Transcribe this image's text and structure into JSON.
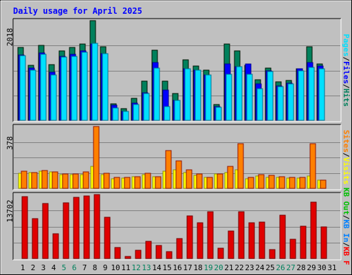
{
  "chart_data": {
    "type": "bar",
    "title": "Daily usage for April 2025",
    "days": [
      "1",
      "2",
      "3",
      "4",
      "5",
      "6",
      "7",
      "8",
      "9",
      "10",
      "11",
      "12",
      "13",
      "14",
      "15",
      "16",
      "17",
      "18",
      "19",
      "20",
      "21",
      "22",
      "23",
      "24",
      "25",
      "26",
      "27",
      "28",
      "29",
      "30",
      "31"
    ],
    "weekend_days": [
      5,
      6,
      12,
      13,
      19,
      20,
      26,
      27
    ],
    "colors": {
      "title": "#0000ff",
      "hits": "#00805c",
      "files": "#0000ff",
      "pages": "#00e0ff",
      "visits": "#ffff00",
      "sites": "#ff8000",
      "kb_out": "#00c000",
      "kb_in": "#0080ff",
      "kb_f": "#ff0000",
      "kbytes": "#e00000",
      "weekday_label": "#000000",
      "weekend_label": "#00805c"
    },
    "panels": [
      {
        "id": "hits-files-pages",
        "max_label": "2018",
        "ymax": 2018,
        "legend": [
          {
            "text": "Hits",
            "color": "#00805c"
          },
          {
            "text": "/",
            "color": "#000000"
          },
          {
            "text": "Files",
            "color": "#0000ff"
          },
          {
            "text": "/",
            "color": "#000000"
          },
          {
            "text": "Pages",
            "color": "#00e0ff"
          }
        ],
        "series": [
          {
            "name": "Hits",
            "color": "#00805c",
            "values": [
              1477,
              1113,
              1520,
              1122,
              1401,
              1480,
              1540,
              2018,
              1496,
              340,
              237,
              440,
              795,
              1425,
              787,
              538,
              1227,
              1106,
              1009,
              323,
              1546,
              1401,
              1116,
              818,
              1064,
              775,
              808,
              1043,
              1494,
              1146,
              0
            ]
          },
          {
            "name": "Files",
            "color": "#0000ff",
            "values": [
              1319,
              1058,
              1367,
              980,
              1291,
              1340,
              1405,
              1540,
              1356,
              301,
              186,
              346,
              563,
              1163,
              612,
              398,
              1048,
              1015,
              920,
              275,
              1144,
              1085,
              1140,
              735,
              1000,
              699,
              753,
              1040,
              1174,
              1101,
              0
            ]
          },
          {
            "name": "Pages",
            "color": "#00e0ff",
            "values": [
              1306,
              1011,
              1336,
              921,
              1281,
              1298,
              1375,
              1561,
              1355,
              250,
              182,
              323,
              542,
              1057,
              277,
              400,
              1046,
              1019,
              925,
              265,
              939,
              1085,
              934,
              634,
              982,
              682,
              743,
              1000,
              1069,
              1041,
              0
            ]
          }
        ]
      },
      {
        "id": "visits-sites",
        "max_label": "378",
        "ymax": 378,
        "legend": [
          {
            "text": "Visits",
            "color": "#ffff00"
          },
          {
            "text": "/",
            "color": "#000000"
          },
          {
            "text": "Sites",
            "color": "#ff8000"
          }
        ],
        "series": [
          {
            "name": "Visits",
            "color": "#ffff00",
            "values": [
              92,
              97,
              107,
              100,
              84,
              84,
              86,
              133,
              84,
              60,
              63,
              72,
              84,
              72,
              106,
              113,
              95,
              79,
              69,
              90,
              97,
              113,
              58,
              75,
              67,
              66,
              62,
              65,
              75,
              49,
              0
            ]
          },
          {
            "name": "Sites",
            "color": "#ff8000",
            "values": [
              105,
              98,
              110,
              102,
              88,
              88,
              100,
              378,
              92,
              68,
              68,
              73,
              92,
              73,
              230,
              168,
              113,
              88,
              69,
              90,
              135,
              275,
              68,
              85,
              78,
              70,
              68,
              68,
              275,
              49,
              0
            ]
          }
        ]
      },
      {
        "id": "kbytes",
        "max_label": "13702",
        "ymax": 13702,
        "legend": [
          {
            "text": "KB F",
            "color": "#ff0000"
          },
          {
            "text": "/",
            "color": "#000000"
          },
          {
            "text": "KB In",
            "color": "#0080ff"
          },
          {
            "text": "/",
            "color": "#000000"
          },
          {
            "text": "KB Out",
            "color": "#00c000"
          }
        ],
        "series": [
          {
            "name": "KB F",
            "color": "#e00000",
            "values": [
              13196,
              8487,
              11762,
              5266,
              11974,
              13051,
              13450,
              13702,
              8862,
              2376,
              492,
              1796,
              3700,
              2753,
              1414,
              4287,
              9169,
              7645,
              10053,
              2235,
              5847,
              10020,
              7702,
              7740,
              1943,
              9218,
              4127,
              6931,
              12062,
              6763,
              0
            ]
          }
        ]
      }
    ]
  }
}
